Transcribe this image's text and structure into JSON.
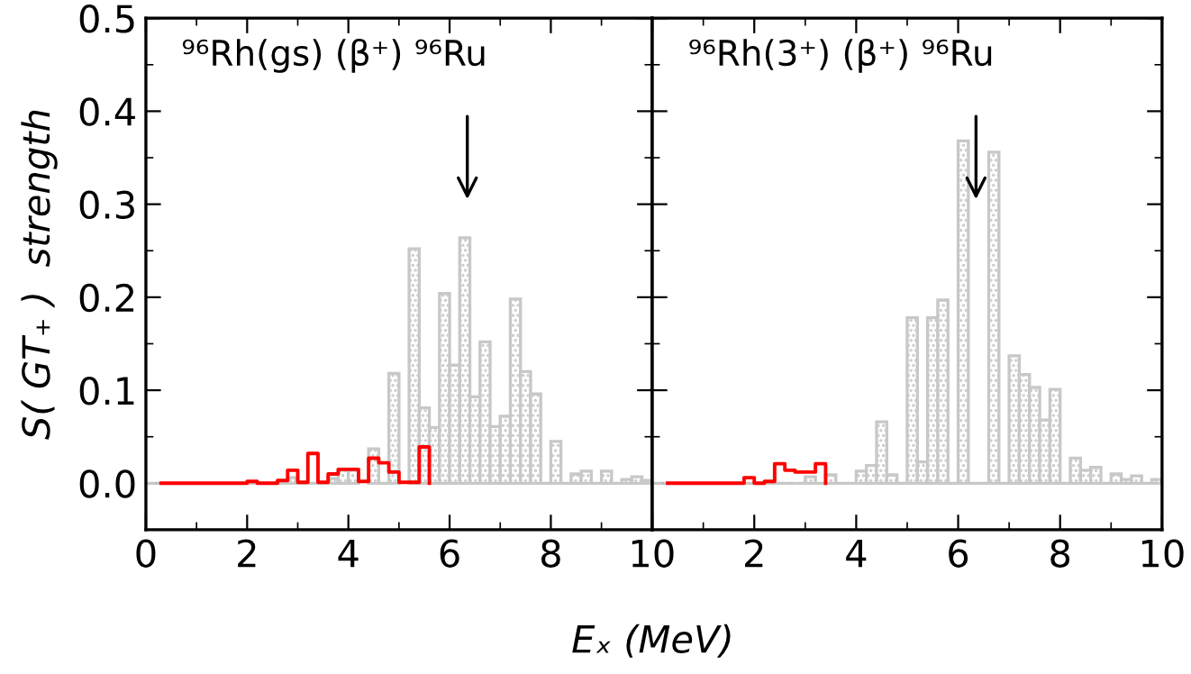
{
  "chart_data": [
    {
      "type": "histogram",
      "ylabel": "S( GT₊ )  strength",
      "xlabel": "Eₓ (MeV)",
      "annotations": [
        "⁹⁶Rh(gs) (β⁺) ⁹⁶Ru"
      ],
      "bins": [
        0,
        0.2,
        0.4,
        0.6,
        0.8,
        1.0,
        1.2,
        1.4,
        1.6,
        1.8,
        2.0,
        2.2,
        2.4,
        2.6,
        2.8,
        3.0,
        3.2,
        3.4,
        3.6,
        3.8,
        4.0,
        4.2,
        4.4,
        4.6,
        4.8,
        5.0,
        5.2,
        5.4,
        5.6,
        5.8,
        6.0,
        6.2,
        6.4,
        6.6,
        6.8,
        7.0,
        7.2,
        7.4,
        7.6,
        7.8,
        8.0,
        8.2,
        8.4,
        8.6,
        8.8,
        9.0,
        9.2,
        9.4,
        9.6,
        9.8,
        10.0
      ],
      "values": [
        0,
        0,
        0,
        0,
        0,
        0,
        0,
        0,
        0,
        0,
        0,
        0,
        0,
        0,
        0.006,
        0,
        0,
        0,
        0.005,
        0.014,
        0.014,
        null,
        0.037,
        0,
        0.118,
        null,
        0.252,
        0.081,
        0.06,
        0.204,
        0.127,
        0.264,
        0.093,
        0.152,
        0.061,
        0.072,
        0.198,
        0.12,
        0.096,
        0,
        0.045,
        0,
        0.01,
        0.013,
        0,
        0.013,
        0,
        0.004,
        0.007,
        0.003
      ],
      "color": "#c8c8c8",
      "series": [
        {
          "type": "step",
          "color": "#ff0000",
          "x": [
            0.3,
            2.0,
            2.2,
            2.6,
            2.8,
            3.0,
            3.2,
            3.4,
            3.6,
            3.8,
            4.2,
            4.4,
            4.6,
            4.8,
            5.0,
            5.4,
            5.6
          ],
          "values": [
            0,
            0.002,
            0,
            0.003,
            0.014,
            0.001,
            0.032,
            0.001,
            0.01,
            0.015,
            0.002,
            0.027,
            0.022,
            0.012,
            0.001,
            0.039,
            0
          ]
        }
      ],
      "xlim": [
        0,
        10
      ],
      "xticks": [
        0,
        2,
        4,
        6,
        8,
        10
      ],
      "ylim": [
        -0.05,
        0.5
      ],
      "yticks": [
        {
          "value": 0,
          "label": "0.0"
        },
        {
          "value": 0.1,
          "label": "0.1"
        },
        {
          "value": 0.2,
          "label": "0.2"
        },
        {
          "value": 0.3,
          "label": "0.3"
        },
        {
          "value": 0.4,
          "label": "0.4"
        },
        {
          "value": 0.5,
          "label": "0.5"
        }
      ]
    },
    {
      "type": "histogram",
      "annotations": [
        "⁹⁶Rh(3⁺) (β⁺) ⁹⁶Ru"
      ],
      "bins": [
        0,
        0.2,
        0.4,
        0.6,
        0.8,
        1.0,
        1.2,
        1.4,
        1.6,
        1.8,
        2.0,
        2.2,
        2.4,
        2.6,
        2.8,
        3.0,
        3.2,
        3.4,
        3.6,
        3.8,
        4.0,
        4.2,
        4.4,
        4.6,
        4.8,
        5.0,
        5.2,
        5.4,
        5.6,
        5.8,
        6.0,
        6.2,
        6.4,
        6.6,
        6.8,
        7.0,
        7.2,
        7.4,
        7.6,
        7.8,
        8.0,
        8.2,
        8.4,
        8.6,
        8.8,
        9.0,
        9.2,
        9.4,
        9.6,
        9.8,
        10.0
      ],
      "values": [
        0,
        0,
        0,
        0,
        0,
        0,
        0,
        0,
        0,
        0,
        null,
        0,
        0,
        0,
        0,
        0.007,
        0,
        0.009,
        0,
        0,
        0.013,
        0.019,
        0.066,
        0.009,
        0,
        0.178,
        0.023,
        0.178,
        0.197,
        0,
        0.368,
        0,
        0,
        0.356,
        0,
        0.137,
        0.117,
        0.103,
        0.068,
        0.101,
        0,
        0.027,
        0.014,
        0.017,
        0,
        0.01,
        0.004,
        0.008,
        0,
        0.004
      ],
      "color": "#c8c8c8",
      "series": [
        {
          "type": "step",
          "color": "#ff0000",
          "x": [
            0.3,
            1.8,
            2.0,
            2.2,
            2.4,
            2.6,
            2.8,
            3.2,
            3.4
          ],
          "values": [
            0,
            0.006,
            0,
            0.002,
            0.021,
            0.014,
            0.012,
            0.021,
            0
          ]
        }
      ],
      "xlim": [
        0,
        10
      ],
      "xticks": [
        {
          "value": 0,
          "label": null
        },
        2,
        4,
        6,
        8,
        10
      ],
      "ylim": [
        -0.05,
        0.5
      ],
      "yticks": [
        0,
        0.1,
        0.2,
        0.3,
        0.4,
        0.5
      ],
      "tick_labels": "x"
    }
  ]
}
